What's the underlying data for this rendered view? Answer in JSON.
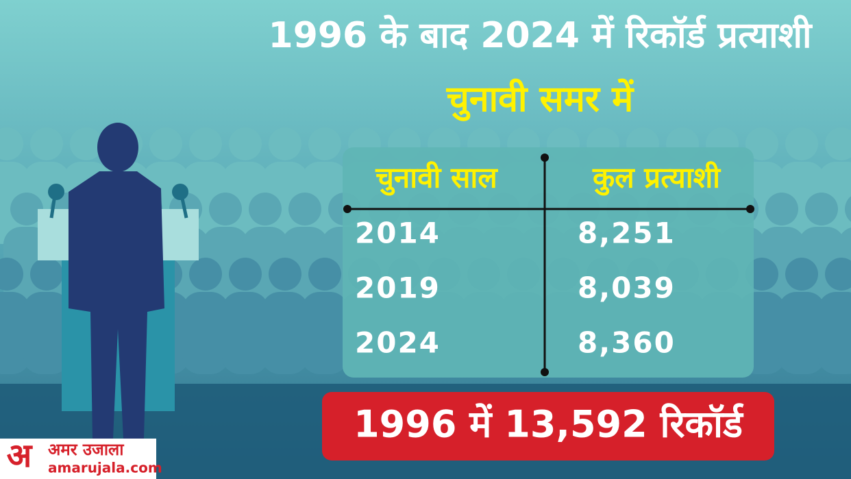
{
  "header": {
    "title": "1996 के बाद 2024 में रिकॉर्ड प्रत्याशी",
    "subtitle": "चुनावी समर में"
  },
  "table": {
    "columns": [
      "चुनावी साल",
      "कुल प्रत्याशी"
    ],
    "rows": [
      [
        "2014",
        "8,251"
      ],
      [
        "2019",
        "8,039"
      ],
      [
        "2024",
        "8,360"
      ]
    ]
  },
  "record": "1996 में 13,592 रिकॉर्ड",
  "logo": {
    "mark": "अ",
    "name": "अमर उजाला",
    "url": "amarujala.com"
  }
}
